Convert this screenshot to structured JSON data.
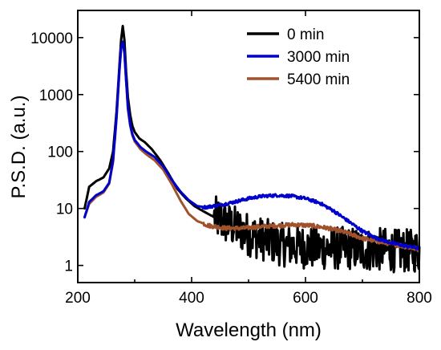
{
  "chart_data": {
    "type": "line",
    "title": "",
    "xlabel": "Wavelength (nm)",
    "ylabel": "P.S.D. (a.u.)",
    "xlim": [
      200,
      800
    ],
    "ylim": [
      0.5,
      30000
    ],
    "yscale": "log",
    "grid": false,
    "legend_position": "top-right",
    "x_ticks": [
      200,
      400,
      600,
      800
    ],
    "x_tick_labels": [
      "200",
      "400",
      "600",
      "800"
    ],
    "y_ticks": [
      1,
      10,
      100,
      1000,
      10000
    ],
    "y_tick_labels": [
      "1",
      "10",
      "100",
      "1000",
      "10000"
    ],
    "series": [
      {
        "name": "0 min",
        "color": "#000000",
        "noisy_from": 440,
        "noise_amp": 0.55,
        "x": [
          212,
          220,
          232,
          245,
          255,
          262,
          268,
          273,
          276,
          279,
          282,
          285,
          288,
          292,
          296,
          300,
          308,
          318,
          330,
          345,
          360,
          375,
          390,
          405,
          420,
          440,
          460,
          480,
          500,
          520,
          540,
          560,
          580,
          600,
          620,
          640,
          660,
          680,
          700,
          720,
          740,
          760,
          780,
          800
        ],
        "y": [
          10,
          24,
          30,
          35,
          50,
          100,
          500,
          3000,
          9000,
          16000,
          9000,
          2500,
          900,
          450,
          280,
          220,
          170,
          145,
          110,
          70,
          40,
          22,
          15,
          11,
          9,
          7,
          5.5,
          4.5,
          3.5,
          3,
          2.6,
          2.3,
          2.2,
          2.1,
          2,
          2,
          2,
          2,
          1.9,
          1.9,
          1.9,
          1.8,
          1.8,
          1.8
        ]
      },
      {
        "name": "3000 min",
        "color": "#0000cc",
        "noisy_from": 420,
        "noise_amp": 0.06,
        "x": [
          212,
          220,
          232,
          245,
          255,
          262,
          268,
          273,
          276,
          279,
          282,
          285,
          288,
          292,
          296,
          300,
          310,
          320,
          335,
          350,
          365,
          380,
          395,
          410,
          425,
          450,
          475,
          500,
          525,
          550,
          575,
          600,
          625,
          650,
          675,
          700,
          725,
          750,
          775,
          800
        ],
        "y": [
          7,
          13,
          17,
          20,
          28,
          70,
          400,
          2500,
          6500,
          8500,
          5500,
          1800,
          600,
          300,
          200,
          160,
          120,
          100,
          80,
          55,
          32,
          20,
          14,
          11,
          10.5,
          11.5,
          13,
          15,
          16.5,
          17,
          16.5,
          15,
          12.5,
          9,
          6,
          4,
          3,
          2.5,
          2.2,
          2
        ]
      },
      {
        "name": "5400 min",
        "color": "#a0522d",
        "noisy_from": 420,
        "noise_amp": 0.08,
        "x": [
          212,
          220,
          232,
          245,
          255,
          262,
          268,
          273,
          276,
          279,
          282,
          285,
          288,
          292,
          296,
          300,
          310,
          320,
          335,
          350,
          365,
          380,
          395,
          410,
          430,
          460,
          490,
          520,
          550,
          580,
          610,
          640,
          670,
          700,
          730,
          760,
          790,
          800
        ],
        "y": [
          7,
          12,
          16,
          19,
          27,
          65,
          380,
          2400,
          6500,
          8000,
          5300,
          1700,
          560,
          290,
          190,
          150,
          110,
          90,
          70,
          48,
          27,
          14,
          8,
          6,
          5,
          4.5,
          4.5,
          4.8,
          5,
          5.2,
          5,
          4.5,
          3.8,
          3,
          2.6,
          2.3,
          2,
          1.9
        ]
      }
    ]
  }
}
